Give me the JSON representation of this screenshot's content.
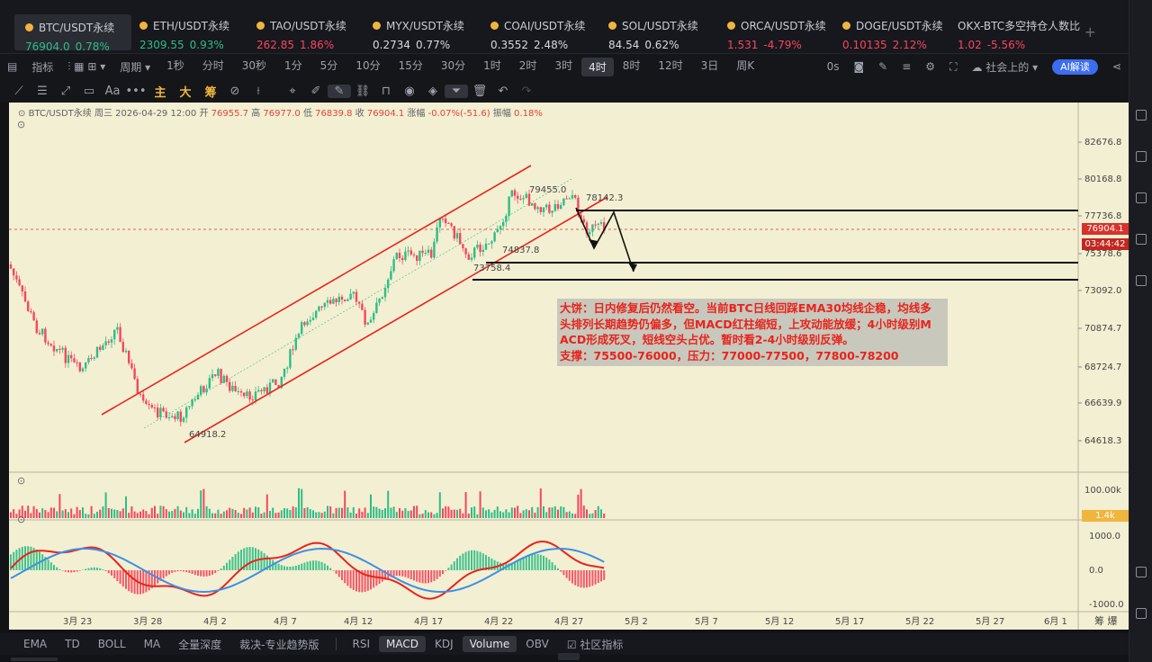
{
  "tickers": [
    {
      "name": "BTC/USDT永续",
      "price": "76904.0",
      "change": "0.78%",
      "dir": "up"
    },
    {
      "name": "ETH/USDT永续",
      "price": "2309.55",
      "change": "0.93%",
      "dir": "up"
    },
    {
      "name": "TAO/USDT永续",
      "price": "262.85",
      "change": "1.86%",
      "dir": "dn"
    },
    {
      "name": "MYX/USDT永续",
      "price": "0.2734",
      "change": "0.77%",
      "dir": "wt"
    },
    {
      "name": "COAI/USDT永续",
      "price": "0.3552",
      "change": "2.48%",
      "dir": "wt"
    },
    {
      "name": "SOL/USDT永续",
      "price": "84.54",
      "change": "0.62%",
      "dir": "wt"
    },
    {
      "name": "ORCA/USDT永续",
      "price": "1.531",
      "change": "-4.79%",
      "dir": "dn"
    },
    {
      "name": "DOGE/USDT永续",
      "price": "0.10135",
      "change": "2.12%",
      "dir": "dn"
    },
    {
      "name": "OKX-BTC多空持仓人数比",
      "price": "1.02",
      "change": "-5.56%",
      "dir": "dn"
    }
  ],
  "toolbar": {
    "indicators": "指标",
    "period": "周期",
    "intervals": [
      "1秒",
      "分时",
      "30秒",
      "1分",
      "5分",
      "10分",
      "15分",
      "30分",
      "1时",
      "2时",
      "3时",
      "4时",
      "8时",
      "12时",
      "3日",
      "周K"
    ],
    "selected_interval": "4时",
    "zero_s": "0s",
    "community": "社会上的",
    "ai": "AI解读"
  },
  "drawtools": {
    "main": "主",
    "big": "大",
    "chips": "筹"
  },
  "legend": {
    "symbol": "BTC/USDT永续",
    "day": "周三",
    "datetime": "2026-04-29 12:00",
    "open_label": "开",
    "open": "76955.7",
    "high_label": "高",
    "high": "76977.0",
    "low_label": "低",
    "low": "76839.8",
    "close_label": "收",
    "close": "76904.1",
    "change_label": "涨幅",
    "change": "-0.07%(-51.6)",
    "amp_label": "振幅",
    "amp": "0.18%"
  },
  "price_axis": [
    "82676.8",
    "80168.8",
    "77736.8",
    "75378.6",
    "73092.0",
    "70874.7",
    "68724.7",
    "66639.9",
    "64618.3"
  ],
  "current_price": "76904.1",
  "countdown": "03:44:42",
  "annotations": {
    "high1": "79455.0",
    "high2": "78142.3",
    "low1": "74837.8",
    "low2": "73758.4",
    "low0": "64918.2"
  },
  "volume_axis": [
    "100.00k"
  ],
  "volume_current": "1.4k",
  "macd_axis": [
    "1000.0",
    "0.0",
    "-1000.0"
  ],
  "date_axis": [
    "3月 23",
    "3月 28",
    "4月 2",
    "4月 7",
    "4月 12",
    "4月 17",
    "4月 22",
    "4月 27",
    "5月 2",
    "5月 7",
    "5月 12",
    "5月 17",
    "5月 22",
    "5月 27",
    "6月 1"
  ],
  "date_axis_right": "筹 爆",
  "note_lines": [
    "大饼：日内修复后仍然看空。当前BTC日线回踩EMA30均线企稳，均线多",
    "头排列长期趋势仍偏多，但MACD红柱缩短，上攻动能放缓；4小时级别M",
    "ACD形成死叉，短线空头占优。暂时看2-4小时级别反弹。",
    "支撑：75500-76000，压力：77000-77500，77800-78200"
  ],
  "bottom_tabs": {
    "left": [
      "EMA",
      "TD",
      "BOLL",
      "MA",
      "全量深度",
      "裁决-专业趋势版"
    ],
    "right": [
      "RSI",
      "MACD",
      "KDJ",
      "Volume",
      "OBV"
    ],
    "selected": [
      "MACD",
      "Volume"
    ],
    "community": "社区指标"
  },
  "colors": {
    "up": "#2ebd85",
    "down": "#f6465d",
    "chart_bg": "#f3efd2",
    "channel": "#e8231c",
    "macd_line": "#e8231c",
    "signal_line": "#3d8fe6"
  }
}
